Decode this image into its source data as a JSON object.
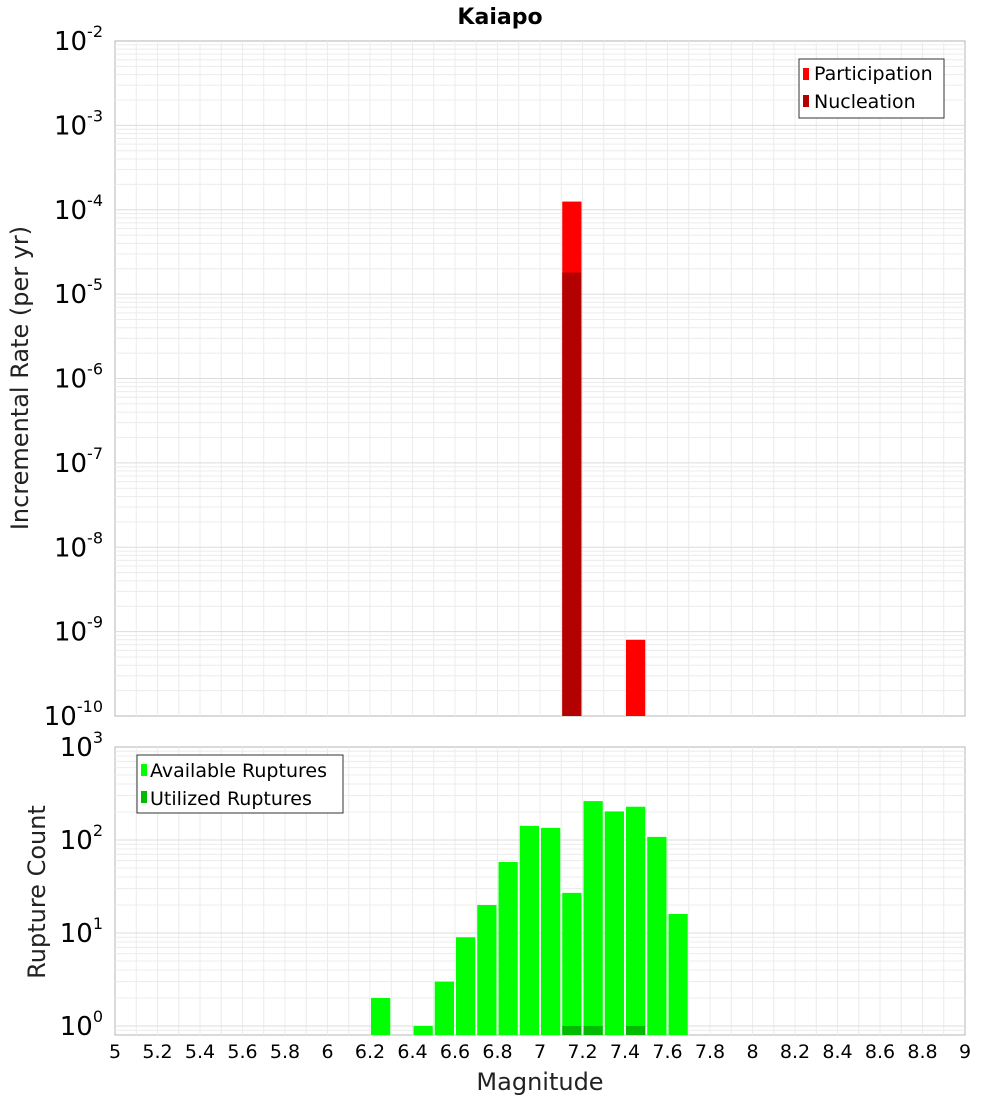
{
  "title": "Kaiapo",
  "colors": {
    "participation": "#ff0000",
    "nucleation": "#b30000",
    "available": "#00ff00",
    "utilized": "#00bb00",
    "grid": "#ececec",
    "frame": "#b4b4b4"
  },
  "chart_data": [
    {
      "type": "bar",
      "panel": "top",
      "xlabel": "Magnitude",
      "ylabel": "Incremental Rate (per yr)",
      "xlim": [
        5,
        9
      ],
      "ylim": [
        1e-10,
        0.01
      ],
      "yscale": "log",
      "y_ticks": [
        {
          "base": "10",
          "exp": "-2",
          "value": 0.01
        },
        {
          "base": "10",
          "exp": "-3",
          "value": 0.001
        },
        {
          "base": "10",
          "exp": "-4",
          "value": 0.0001
        },
        {
          "base": "10",
          "exp": "-5",
          "value": 1e-05
        },
        {
          "base": "10",
          "exp": "-6",
          "value": 1e-06
        },
        {
          "base": "10",
          "exp": "-7",
          "value": 1e-07
        },
        {
          "base": "10",
          "exp": "-8",
          "value": 1e-08
        },
        {
          "base": "10",
          "exp": "-9",
          "value": 1e-09
        },
        {
          "base": "10",
          "exp": "-10",
          "value": 1e-10
        }
      ],
      "grid": true,
      "legend_position": "top-right",
      "series": [
        {
          "name": "Participation",
          "color_key": "participation",
          "bars": [
            {
              "x": 7.15,
              "y": 0.000125
            },
            {
              "x": 7.45,
              "y": 8e-10
            }
          ]
        },
        {
          "name": "Nucleation",
          "color_key": "nucleation",
          "bars": [
            {
              "x": 7.15,
              "y": 1.8e-05
            }
          ]
        }
      ]
    },
    {
      "type": "bar",
      "panel": "bottom",
      "xlabel": "Magnitude",
      "ylabel": "Rupture Count",
      "xlim": [
        5,
        9
      ],
      "ylim": [
        0.8,
        1000
      ],
      "yscale": "log",
      "y_ticks": [
        {
          "base": "10",
          "exp": "3",
          "value": 1000
        },
        {
          "base": "10",
          "exp": "2",
          "value": 100
        },
        {
          "base": "10",
          "exp": "1",
          "value": 10
        },
        {
          "base": "10",
          "exp": "0",
          "value": 1
        }
      ],
      "x_ticks": [
        "5",
        "5.2",
        "5.4",
        "5.6",
        "5.8",
        "6",
        "6.2",
        "6.4",
        "6.6",
        "6.8",
        "7",
        "7.2",
        "7.4",
        "7.6",
        "7.8",
        "8",
        "8.2",
        "8.4",
        "8.6",
        "8.8",
        "9"
      ],
      "grid": true,
      "legend_position": "top-left",
      "series": [
        {
          "name": "Available Ruptures",
          "color_key": "available",
          "bars": [
            {
              "x": 6.25,
              "y": 2
            },
            {
              "x": 6.45,
              "y": 1
            },
            {
              "x": 6.55,
              "y": 3
            },
            {
              "x": 6.65,
              "y": 9
            },
            {
              "x": 6.75,
              "y": 20
            },
            {
              "x": 6.85,
              "y": 58
            },
            {
              "x": 6.95,
              "y": 142
            },
            {
              "x": 7.05,
              "y": 135
            },
            {
              "x": 7.15,
              "y": 27
            },
            {
              "x": 7.25,
              "y": 262
            },
            {
              "x": 7.35,
              "y": 203
            },
            {
              "x": 7.45,
              "y": 228
            },
            {
              "x": 7.55,
              "y": 108
            },
            {
              "x": 7.65,
              "y": 16
            }
          ]
        },
        {
          "name": "Utilized Ruptures",
          "color_key": "utilized",
          "bars": [
            {
              "x": 7.15,
              "y": 1
            },
            {
              "x": 7.25,
              "y": 1
            },
            {
              "x": 7.45,
              "y": 1
            }
          ]
        }
      ]
    }
  ]
}
